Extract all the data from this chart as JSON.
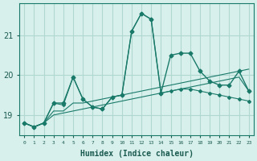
{
  "title": "",
  "xlabel": "Humidex (Indice chaleur)",
  "ylabel": "",
  "bg_color": "#d8f0ec",
  "grid_color": "#b0d8d0",
  "line_color": "#1a7a6a",
  "x": [
    0,
    1,
    2,
    3,
    4,
    5,
    6,
    7,
    8,
    9,
    10,
    11,
    12,
    13,
    14,
    15,
    16,
    17,
    18,
    19,
    20,
    21,
    22,
    23
  ],
  "line1": [
    18.8,
    18.7,
    18.8,
    19.3,
    19.3,
    19.95,
    19.4,
    19.2,
    19.15,
    19.45,
    19.5,
    21.1,
    21.55,
    21.4,
    19.55,
    20.5,
    20.55,
    20.55,
    20.1,
    19.85,
    19.75,
    19.75,
    20.1,
    19.6
  ],
  "line2": [
    18.8,
    18.7,
    18.8,
    19.3,
    19.25,
    19.95,
    19.4,
    19.2,
    19.15,
    19.45,
    19.5,
    21.1,
    21.55,
    21.4,
    19.55,
    19.6,
    19.65,
    19.65,
    19.6,
    19.55,
    19.5,
    19.45,
    19.4,
    19.35
  ],
  "line3": [
    18.8,
    18.7,
    18.8,
    19.1,
    19.1,
    19.3,
    19.3,
    19.35,
    19.4,
    19.45,
    19.5,
    19.55,
    19.6,
    19.65,
    19.7,
    19.75,
    19.8,
    19.85,
    19.9,
    19.95,
    20.0,
    20.05,
    20.1,
    20.15
  ],
  "line4": [
    18.8,
    18.7,
    18.8,
    19.0,
    19.05,
    19.1,
    19.15,
    19.2,
    19.25,
    19.3,
    19.35,
    19.4,
    19.45,
    19.5,
    19.55,
    19.6,
    19.65,
    19.7,
    19.75,
    19.8,
    19.85,
    19.9,
    19.95,
    19.6
  ],
  "ylim": [
    18.5,
    21.8
  ],
  "yticks": [
    19,
    20,
    21
  ],
  "xlim": [
    -0.5,
    23.5
  ],
  "xticks": [
    0,
    1,
    2,
    3,
    4,
    5,
    6,
    7,
    8,
    9,
    10,
    11,
    12,
    13,
    14,
    15,
    16,
    17,
    18,
    19,
    20,
    21,
    22,
    23
  ]
}
